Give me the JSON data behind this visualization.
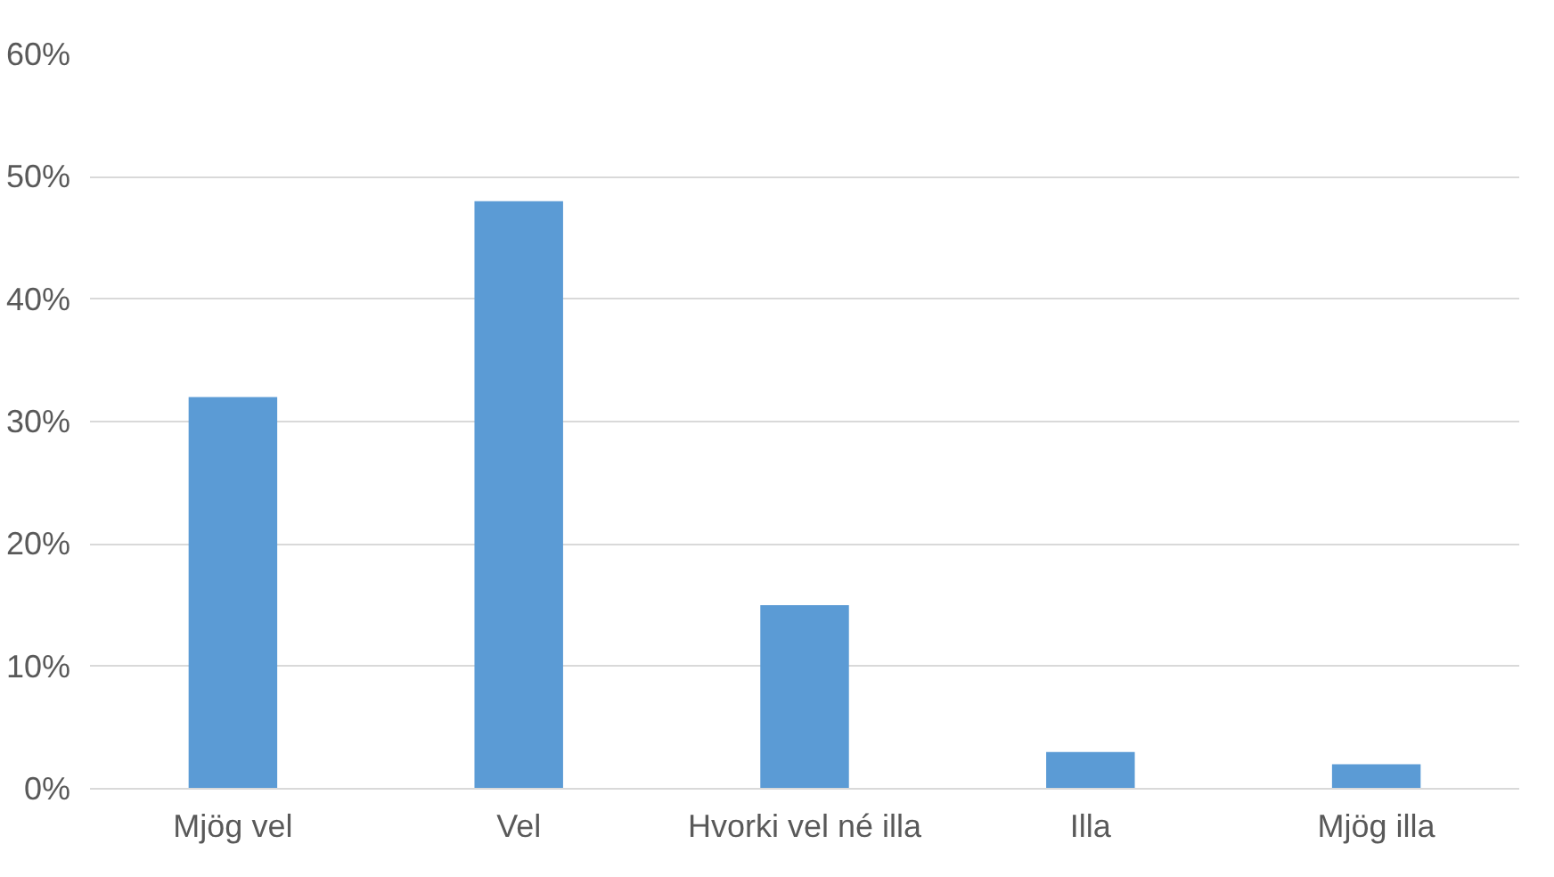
{
  "chart_data": {
    "type": "bar",
    "categories": [
      "Mjög vel",
      "Vel",
      "Hvorki vel né illa",
      "Illa",
      "Mjög illa"
    ],
    "values": [
      32,
      48,
      15,
      3,
      2
    ],
    "color": "#5b9bd5",
    "ylim": [
      0,
      60
    ],
    "yticks": [
      {
        "value": 0,
        "label": "0%"
      },
      {
        "value": 10,
        "label": "10%"
      },
      {
        "value": 20,
        "label": "20%"
      },
      {
        "value": 30,
        "label": "30%"
      },
      {
        "value": 40,
        "label": "40%"
      },
      {
        "value": 50,
        "label": "50%"
      },
      {
        "value": 60,
        "label": "60%"
      }
    ],
    "grid": "y"
  }
}
